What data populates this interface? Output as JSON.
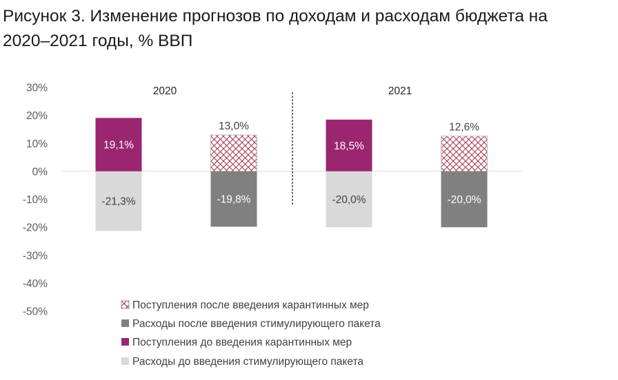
{
  "title": {
    "line1": "Рисунок 3. Изменение прогнозов по доходам и расходам бюджета на",
    "line2": "2020–2021 годы, % ВВП"
  },
  "colors": {
    "revenue_after": "#a8324a",
    "expense_after": "#808080",
    "revenue_before": "#9b2670",
    "expense_before": "#d9d9d9",
    "axis_text": "#595959",
    "zero_line": "#d9d9d9"
  },
  "chart_data": {
    "type": "bar",
    "ylim": [
      -50,
      30
    ],
    "y_ticks": [
      30,
      20,
      10,
      0,
      -10,
      -20,
      -30,
      -40,
      -50
    ],
    "y_tick_labels": [
      "30%",
      "20%",
      "10%",
      "0%",
      "-10%",
      "-20%",
      "-30%",
      "-40%",
      "-50%"
    ],
    "group_labels": [
      "2020",
      "2021"
    ],
    "groups": [
      {
        "label": "2020",
        "bars": [
          {
            "positive": {
              "series": "Поступления до введения карантинных мер",
              "value": 19.1,
              "label": "19,1%"
            },
            "negative": {
              "series": "Расходы до введения стимулирующего пакета",
              "value": -21.3,
              "label": "-21,3%"
            }
          },
          {
            "positive": {
              "series": "Поступления после введения карантинных мер",
              "value": 13.0,
              "label": "13,0%"
            },
            "negative": {
              "series": "Расходы после введения стимулирующего пакета",
              "value": -19.8,
              "label": "-19,8%"
            }
          }
        ]
      },
      {
        "label": "2021",
        "bars": [
          {
            "positive": {
              "series": "Поступления до введения карантинных мер",
              "value": 18.5,
              "label": "18,5%"
            },
            "negative": {
              "series": "Расходы до введения стимулирующего пакета",
              "value": -20.0,
              "label": "-20,0%"
            }
          },
          {
            "positive": {
              "series": "Поступления после введения карантинных мер",
              "value": 12.6,
              "label": "12,6%"
            },
            "negative": {
              "series": "Расходы после введения стимулирующего пакета",
              "value": -20.0,
              "label": "-20,0%"
            }
          }
        ]
      }
    ],
    "legend": [
      {
        "name": "Поступления после введения карантинных мер",
        "style": "hatched"
      },
      {
        "name": "Расходы после введения стимулирующего пакета",
        "style": "dark-gray"
      },
      {
        "name": "Поступления до введения карантинных мер",
        "style": "purple"
      },
      {
        "name": "Расходы до введения стимулирующего пакета",
        "style": "light-gray"
      }
    ],
    "legend_position": "bottom-center",
    "grid": false
  }
}
